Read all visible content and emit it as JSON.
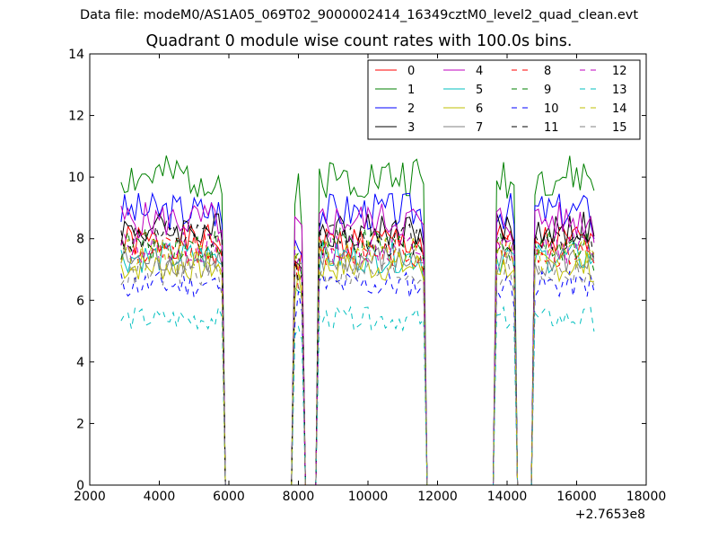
{
  "suptitle": "Data file: modeM0/AS1A05_069T02_9000002414_16349cztM0_level2_quad_clean.evt",
  "chart_data": {
    "type": "line",
    "title": "Quadrant 0 module wise count rates with 100.0s bins.",
    "xlabel": "",
    "ylabel": "",
    "xlim": [
      2000,
      18000
    ],
    "ylim": [
      0,
      14
    ],
    "x_offset_label": "+2.7653e8",
    "xticks": [
      "2000",
      "4000",
      "6000",
      "8000",
      "10000",
      "12000",
      "14000",
      "16000",
      "18000"
    ],
    "yticks": [
      "0",
      "2",
      "4",
      "6",
      "8",
      "10",
      "12",
      "14"
    ],
    "grid": false,
    "legend_position": "top-right",
    "legend_columns": 4,
    "bin_width": 100,
    "gti": [
      [
        2900,
        5800
      ],
      [
        7900,
        8100
      ],
      [
        8600,
        11600
      ],
      [
        13700,
        14200
      ],
      [
        14800,
        16500
      ]
    ],
    "series": [
      {
        "name": "0",
        "color": "#ff0000",
        "style": "solid",
        "level": 7.9
      },
      {
        "name": "1",
        "color": "#008000",
        "style": "solid",
        "level": 10.0
      },
      {
        "name": "2",
        "color": "#0000ff",
        "style": "solid",
        "level": 8.9
      },
      {
        "name": "3",
        "color": "#000000",
        "style": "solid",
        "level": 8.3
      },
      {
        "name": "4",
        "color": "#bf00bf",
        "style": "solid",
        "level": 8.6
      },
      {
        "name": "5",
        "color": "#00bfbf",
        "style": "solid",
        "level": 7.4
      },
      {
        "name": "6",
        "color": "#bfbf00",
        "style": "solid",
        "level": 7.1
      },
      {
        "name": "7",
        "color": "#808080",
        "style": "solid",
        "level": 7.3
      },
      {
        "name": "8",
        "color": "#ff0000",
        "style": "dashed",
        "level": 7.6
      },
      {
        "name": "9",
        "color": "#008000",
        "style": "dashed",
        "level": 7.8
      },
      {
        "name": "10",
        "color": "#0000ff",
        "style": "dashed",
        "level": 6.5
      },
      {
        "name": "11",
        "color": "#000000",
        "style": "dashed",
        "level": 8.0
      },
      {
        "name": "12",
        "color": "#bf00bf",
        "style": "dashed",
        "level": 7.7
      },
      {
        "name": "13",
        "color": "#00bfbf",
        "style": "dashed",
        "level": 5.4
      },
      {
        "name": "14",
        "color": "#bfbf00",
        "style": "dashed",
        "level": 7.5
      },
      {
        "name": "15",
        "color": "#808080",
        "style": "dashed",
        "level": 6.9
      }
    ]
  }
}
